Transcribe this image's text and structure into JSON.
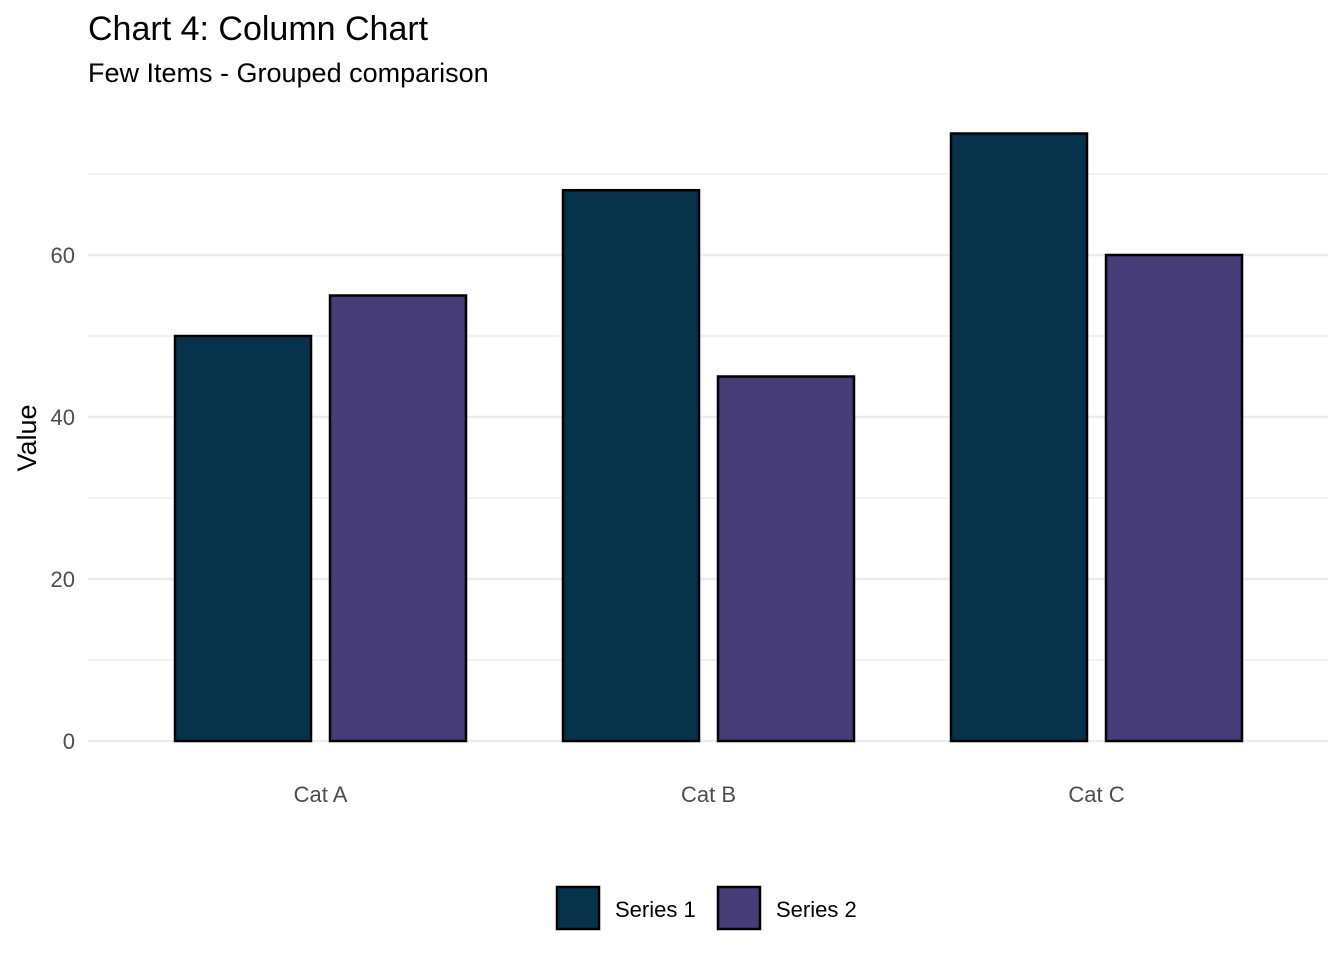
{
  "chart_data": {
    "type": "bar",
    "title": "Chart 4: Column Chart",
    "subtitle": "Few Items - Grouped comparison",
    "xlabel": "",
    "ylabel": "Value",
    "categories": [
      "Cat A",
      "Cat B",
      "Cat C"
    ],
    "series": [
      {
        "name": "Series 1",
        "values": [
          50,
          68,
          75
        ],
        "color": "#06324b"
      },
      {
        "name": "Series 2",
        "values": [
          55,
          45,
          60
        ],
        "color": "#463c78"
      }
    ],
    "ylim": [
      0,
      75
    ],
    "yticks": [
      0,
      20,
      40,
      60
    ],
    "y_minor_gridlines": [
      10,
      30,
      50,
      70
    ],
    "grid": true,
    "legend_position": "bottom",
    "bar_outline_color": "#000000",
    "gridline_color": "#ebebeb"
  }
}
